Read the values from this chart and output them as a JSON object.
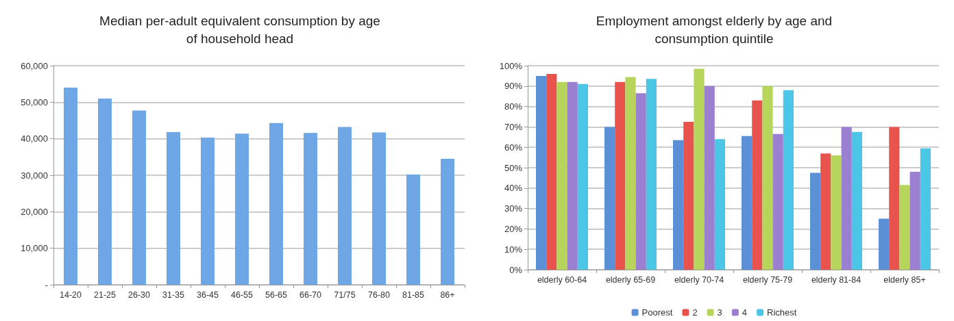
{
  "chart_data": [
    {
      "type": "bar",
      "title": "Median per-adult equivalent consumption by age\nof household head",
      "categories": [
        "14-20",
        "21-25",
        "26-30",
        "31-35",
        "36-45",
        "46-55",
        "56-65",
        "66-70",
        "71/75",
        "76-80",
        "81-85",
        "86+"
      ],
      "values": [
        54000,
        51000,
        47700,
        41800,
        40300,
        41400,
        44300,
        41600,
        43200,
        41700,
        30200,
        34500
      ],
      "color": "#6fa6e6",
      "ylim": [
        0,
        60000
      ],
      "yticks": [
        {
          "value": 0,
          "label": "-"
        },
        {
          "value": 10000,
          "label": "10,000"
        },
        {
          "value": 20000,
          "label": "20,000"
        },
        {
          "value": 30000,
          "label": "30,000"
        },
        {
          "value": 40000,
          "label": "40,000"
        },
        {
          "value": 50000,
          "label": "50,000"
        },
        {
          "value": 60000,
          "label": "60,000"
        }
      ],
      "grid": "y",
      "legend": false
    },
    {
      "type": "bar",
      "title": "Employment amongst elderly by age and\nconsumption quintile",
      "categories": [
        "elderly 60-64",
        "elderly 65-69",
        "elderly 70-74",
        "elderly 75-79",
        "elderly 81-84",
        "elderly 85+"
      ],
      "series": [
        {
          "name": "Poorest",
          "color": "#5b8fd6",
          "values": [
            95,
            70,
            63.5,
            65.5,
            47.5,
            25
          ]
        },
        {
          "name": "2",
          "color": "#e8534e",
          "values": [
            96,
            92,
            72.5,
            83,
            57,
            70
          ]
        },
        {
          "name": "3",
          "color": "#b6d55a",
          "values": [
            92,
            94.5,
            98.5,
            90,
            56,
            41.5
          ]
        },
        {
          "name": "4",
          "color": "#9b7fd0",
          "values": [
            92,
            86.5,
            90,
            66.5,
            70,
            48
          ]
        },
        {
          "name": "Richest",
          "color": "#4cc6e6",
          "values": [
            91,
            93.5,
            64,
            88,
            67.5,
            59.5
          ]
        }
      ],
      "ylim": [
        0,
        100
      ],
      "yticks": [
        {
          "value": 0,
          "label": "0%"
        },
        {
          "value": 10,
          "label": "10%"
        },
        {
          "value": 20,
          "label": "20%"
        },
        {
          "value": 30,
          "label": "30%"
        },
        {
          "value": 40,
          "label": "40%"
        },
        {
          "value": 50,
          "label": "50%"
        },
        {
          "value": 60,
          "label": "60%"
        },
        {
          "value": 70,
          "label": "70%"
        },
        {
          "value": 80,
          "label": "80%"
        },
        {
          "value": 90,
          "label": "90%"
        },
        {
          "value": 100,
          "label": "100%"
        }
      ],
      "grid": "y",
      "legend": "bottom"
    }
  ]
}
